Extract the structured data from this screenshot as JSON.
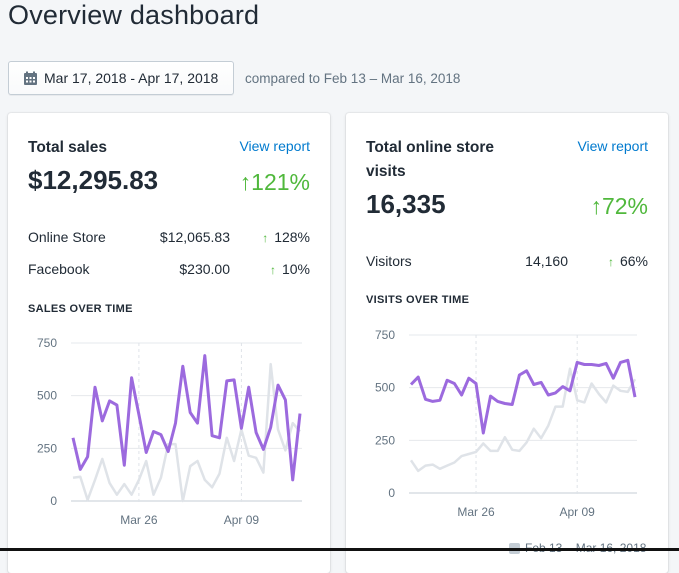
{
  "page_title": "Overview dashboard",
  "date_range": {
    "label": "Mar 17, 2018 - Apr 17, 2018",
    "icon": "calendar-icon",
    "compare_text": "compared to Feb 13 – Mar 16, 2018"
  },
  "colors": {
    "accent": "#9c6ade",
    "comparison": "#dfe3e8",
    "positive": "#50b83c",
    "link": "#007ace"
  },
  "sales_card": {
    "title": "Total sales",
    "view_report": "View report",
    "total": "$12,295.83",
    "change": "↑121%",
    "rows": [
      {
        "label": "Online Store",
        "value": "$12,065.83",
        "arrow": "↑",
        "change": "128%"
      },
      {
        "label": "Facebook",
        "value": "$230.00",
        "arrow": "↑",
        "change": "10%"
      }
    ],
    "section_title": "SALES OVER TIME"
  },
  "visits_card": {
    "title_line1": "Total online store",
    "title_line2": "visits",
    "view_report": "View report",
    "total": "16,335",
    "change": "↑72%",
    "rows": [
      {
        "label": "Visitors",
        "value": "14,160",
        "arrow": "↑",
        "change": "66%"
      }
    ],
    "section_title": "VISITS OVER TIME",
    "legend_label": "Feb 13 – Mar 16, 2018"
  },
  "chart_data": [
    {
      "type": "line",
      "title": "SALES OVER TIME",
      "ylim": [
        0,
        750
      ],
      "yticks": [
        "0",
        "250",
        "500",
        "750"
      ],
      "xticks": [
        {
          "label": "Mar 26",
          "index": 9
        },
        {
          "label": "Apr 09",
          "index": 23
        }
      ],
      "grid": true,
      "series": [
        {
          "values": [
            300,
            150,
            210,
            540,
            380,
            475,
            455,
            170,
            585,
            410,
            230,
            330,
            315,
            235,
            370,
            640,
            420,
            370,
            690,
            310,
            300,
            570,
            575,
            345,
            540,
            325,
            245,
            350,
            550,
            480,
            100,
            415
          ]
        },
        {
          "name": "Feb 13 – Mar 16, 2018",
          "values": [
            110,
            115,
            5,
            100,
            200,
            85,
            30,
            80,
            30,
            100,
            190,
            30,
            110,
            270,
            270,
            0,
            165,
            190,
            100,
            65,
            130,
            300,
            190,
            340,
            215,
            205,
            135,
            650,
            340,
            240,
            370,
            330
          ]
        }
      ]
    },
    {
      "type": "line",
      "title": "VISITS OVER TIME",
      "ylim": [
        0,
        750
      ],
      "yticks": [
        "0",
        "250",
        "500",
        "750"
      ],
      "xticks": [
        {
          "label": "Mar 26",
          "index": 9
        },
        {
          "label": "Apr 09",
          "index": 23
        }
      ],
      "grid": true,
      "legend": "bottom",
      "series": [
        {
          "values": [
            515,
            550,
            445,
            435,
            440,
            535,
            520,
            465,
            545,
            520,
            285,
            460,
            435,
            425,
            420,
            560,
            580,
            515,
            525,
            465,
            475,
            505,
            485,
            620,
            610,
            610,
            605,
            615,
            545,
            620,
            630,
            455
          ]
        },
        {
          "name": "Feb 13 – Mar 16, 2018",
          "values": [
            155,
            105,
            130,
            135,
            115,
            130,
            145,
            175,
            185,
            195,
            235,
            200,
            200,
            265,
            205,
            200,
            240,
            305,
            260,
            320,
            410,
            410,
            590,
            440,
            430,
            520,
            470,
            430,
            510,
            485,
            480,
            540
          ]
        }
      ]
    }
  ]
}
